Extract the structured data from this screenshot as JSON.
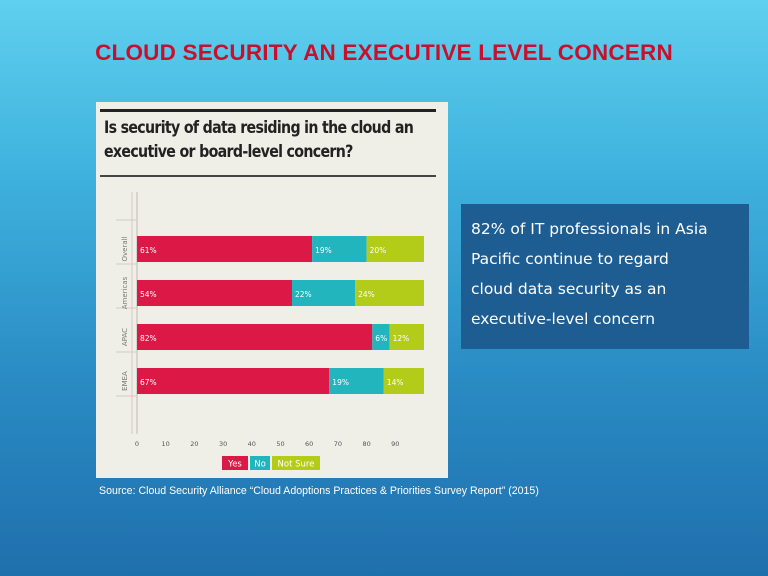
{
  "slide": {
    "title": "CLOUD SECURITY AN EXECUTIVE LEVEL CONCERN",
    "callout_lines": [
      "82% of IT professionals in  Asia",
      "Pacific continue to regard",
      "cloud data security as an",
      "executive-level concern"
    ],
    "source": "Source: Cloud Security Alliance “Cloud Adoptions Practices & Priorities Survey Report” (2015)"
  },
  "chart_data": {
    "type": "bar",
    "orientation": "horizontal",
    "stacked": true,
    "title": "Is security of data residing in the cloud an executive or board-level concern?",
    "title_lines": [
      "Is security of data residing in the cloud an",
      "executive or board-level concern?"
    ],
    "categories": [
      "Overall",
      "Americas",
      "APAC",
      "EMEA"
    ],
    "series": [
      {
        "name": "Yes",
        "values": [
          61,
          54,
          82,
          67
        ],
        "color": "#dc1946"
      },
      {
        "name": "No",
        "values": [
          19,
          22,
          6,
          19
        ],
        "color": "#23b5bd"
      },
      {
        "name": "Not Sure",
        "values": [
          20,
          24,
          12,
          14
        ],
        "color": "#b3cc1a"
      }
    ],
    "value_labels": [
      [
        "61%",
        "54%",
        "82%",
        "67%"
      ],
      [
        "19%",
        "22%",
        "6%",
        "19%"
      ],
      [
        "20%",
        "24%",
        "12%",
        "14%"
      ]
    ],
    "x_ticks": [
      0,
      10,
      20,
      30,
      40,
      50,
      60,
      70,
      80,
      90
    ],
    "xlim": [
      0,
      100
    ],
    "grid": false,
    "legend_position": "bottom-center"
  }
}
